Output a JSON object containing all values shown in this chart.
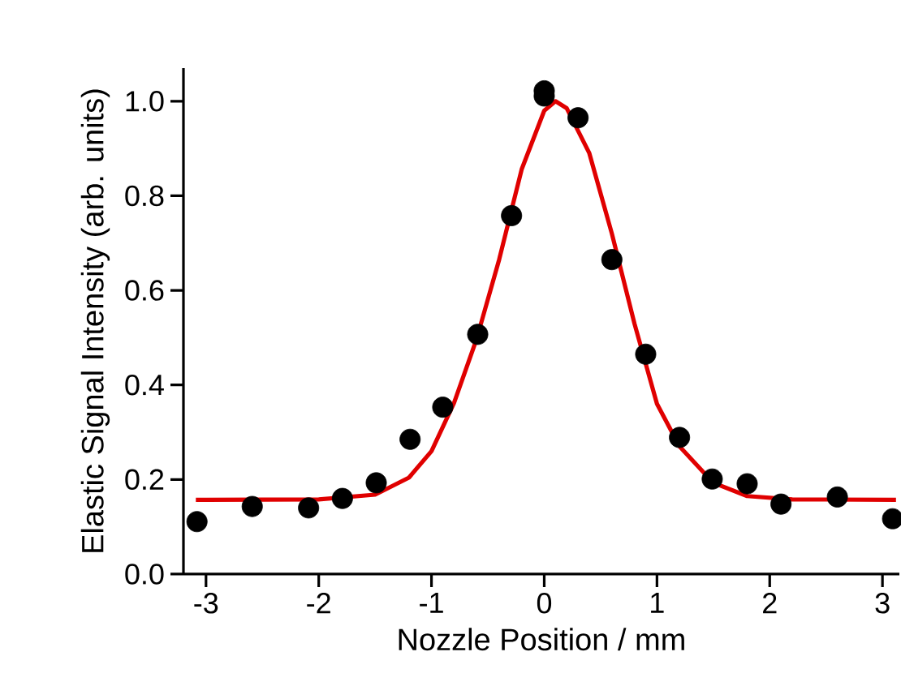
{
  "chart_data": {
    "type": "scatter",
    "xlabel": "Nozzle Position / mm",
    "ylabel": "Elastic Signal Intensity (arb. units)",
    "xlim": [
      -3.2,
      3.15
    ],
    "ylim": [
      0,
      1.07
    ],
    "xticks": [
      -3,
      -2,
      -1,
      0,
      1,
      2,
      3
    ],
    "yticks": [
      {
        "value": 0,
        "label": "0.0"
      },
      {
        "value": 0.2,
        "label": "0.2"
      },
      {
        "value": 0.4,
        "label": "0.4"
      },
      {
        "value": 0.6,
        "label": "0.6"
      },
      {
        "value": 0.8,
        "label": "0.8"
      },
      {
        "value": 1.0,
        "label": "1.0"
      }
    ],
    "series": [
      {
        "type": "scatter",
        "color": "#000000",
        "marker": "circle",
        "x": [
          -3.08,
          -2.59,
          -2.09,
          -1.79,
          -1.49,
          -1.19,
          -0.9,
          -0.59,
          -0.29,
          0.0,
          0.0,
          0.3,
          0.6,
          0.9,
          1.2,
          1.49,
          1.8,
          2.1,
          2.6,
          3.09
        ],
        "values": [
          0.111,
          0.143,
          0.14,
          0.16,
          0.193,
          0.285,
          0.353,
          0.507,
          0.758,
          1.022,
          1.011,
          0.965,
          0.665,
          0.465,
          0.289,
          0.201,
          0.191,
          0.148,
          0.163,
          0.117
        ]
      },
      {
        "type": "line",
        "color": "#e00000",
        "marker": "none",
        "line_style": "solid",
        "x": [
          -3.09,
          -2.0,
          -1.5,
          -1.2,
          -1.0,
          -0.8,
          -0.6,
          -0.4,
          -0.2,
          0.0,
          0.1,
          0.2,
          0.4,
          0.6,
          0.8,
          1.0,
          1.2,
          1.5,
          1.8,
          2.2,
          3.12
        ],
        "values": [
          0.157,
          0.158,
          0.168,
          0.204,
          0.26,
          0.362,
          0.497,
          0.665,
          0.856,
          0.98,
          1.0,
          0.985,
          0.89,
          0.72,
          0.53,
          0.36,
          0.27,
          0.193,
          0.165,
          0.158,
          0.157
        ]
      }
    ]
  }
}
